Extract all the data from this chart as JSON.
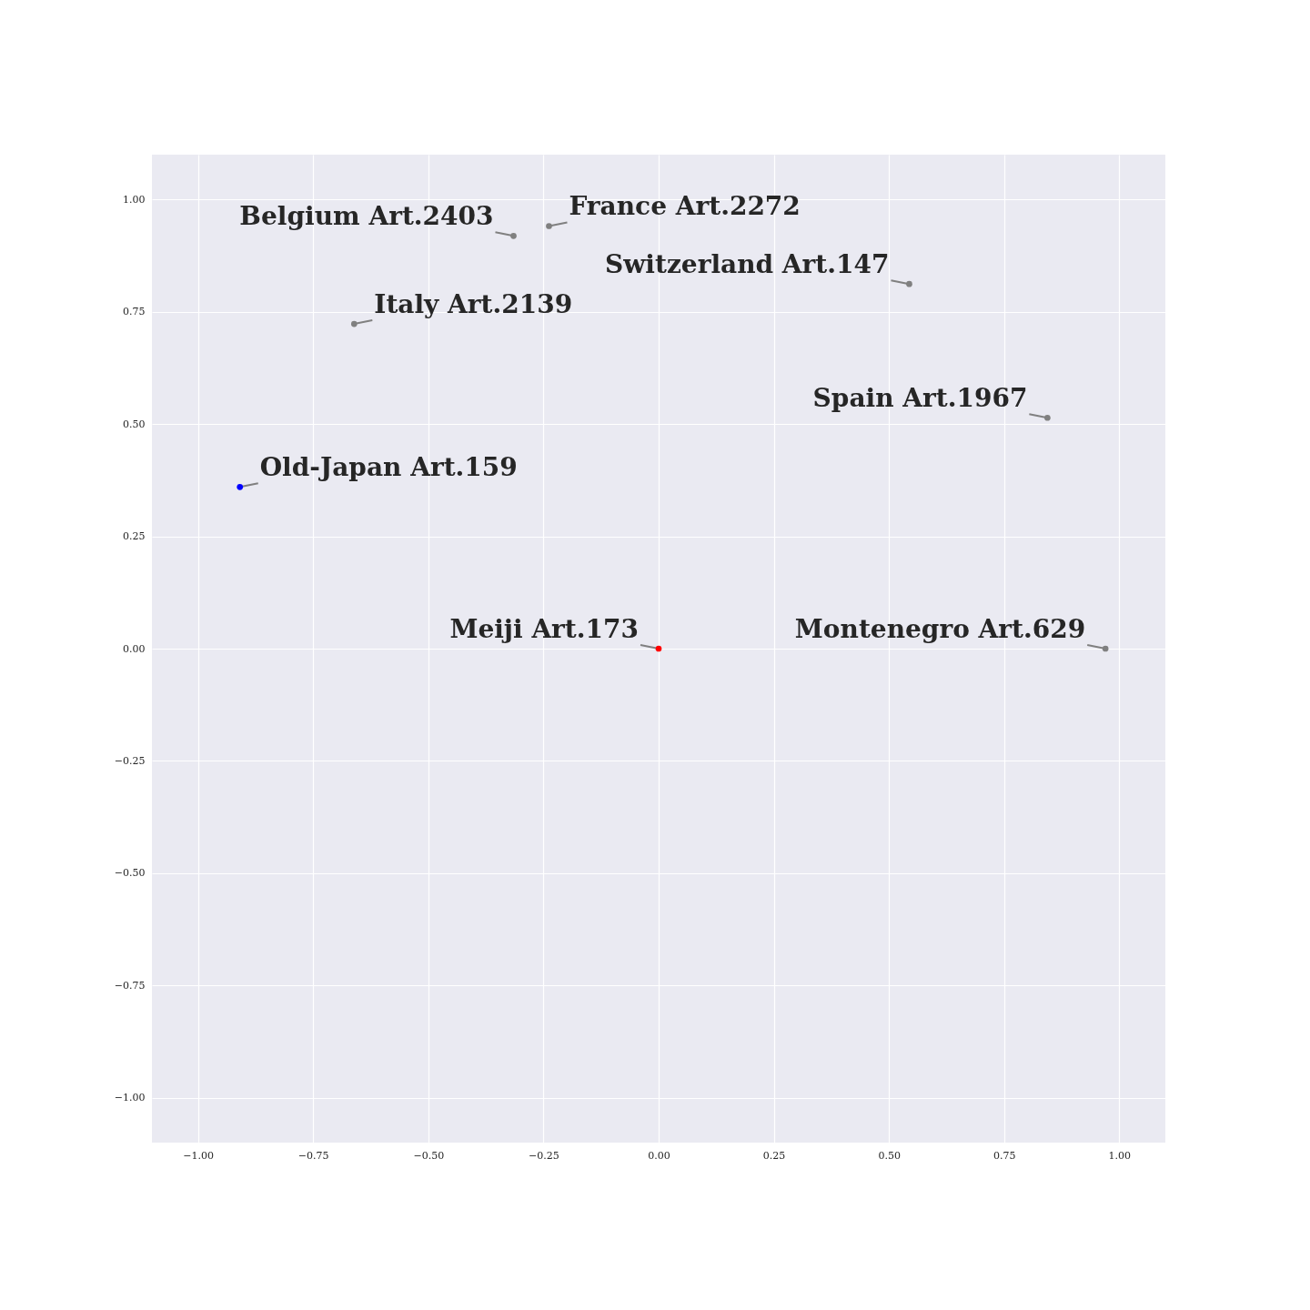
{
  "chart_data": {
    "type": "scatter",
    "grid": true,
    "marker": "circle",
    "xlim": [
      -1.1,
      1.1
    ],
    "ylim": [
      -1.1,
      1.1
    ],
    "xticks": [
      {
        "value": -1,
        "label": "−1.00"
      },
      {
        "value": -0.75,
        "label": "−0.75"
      },
      {
        "value": -0.5,
        "label": "−0.50"
      },
      {
        "value": -0.25,
        "label": "−0.25"
      },
      {
        "value": 0,
        "label": "0.00"
      },
      {
        "value": 0.25,
        "label": "0.25"
      },
      {
        "value": 0.5,
        "label": "0.50"
      },
      {
        "value": 0.75,
        "label": "0.75"
      },
      {
        "value": 1,
        "label": "1.00"
      }
    ],
    "yticks": [
      {
        "value": -1,
        "label": "−1.00"
      },
      {
        "value": -0.75,
        "label": "−0.75"
      },
      {
        "value": -0.5,
        "label": "−0.50"
      },
      {
        "value": -0.25,
        "label": "−0.25"
      },
      {
        "value": 0,
        "label": "0.00"
      },
      {
        "value": 0.25,
        "label": "0.25"
      },
      {
        "value": 0.5,
        "label": "0.50"
      },
      {
        "value": 0.75,
        "label": "0.75"
      },
      {
        "value": 1,
        "label": "1.00"
      }
    ],
    "series": [
      {
        "x": [
          -0.238,
          -0.315,
          0.544,
          -0.661,
          0.844,
          -0.909,
          0.97,
          0
        ],
        "values": [
          0.941,
          0.919,
          0.812,
          0.723,
          0.514,
          0.36,
          0,
          0
        ],
        "colors": [
          "#808080",
          "#808080",
          "#808080",
          "#808080",
          "#808080",
          "#0000ff",
          "#808080",
          "#ff0000"
        ],
        "value_labels": [
          "France Art.2272",
          "Belgium Art.2403",
          "Switzerland Art.147",
          "Italy Art.2139",
          "Spain Art.1967",
          "Old-Japan Art.159",
          "Montenegro Art.629",
          "Meiji Art.173"
        ]
      }
    ]
  }
}
